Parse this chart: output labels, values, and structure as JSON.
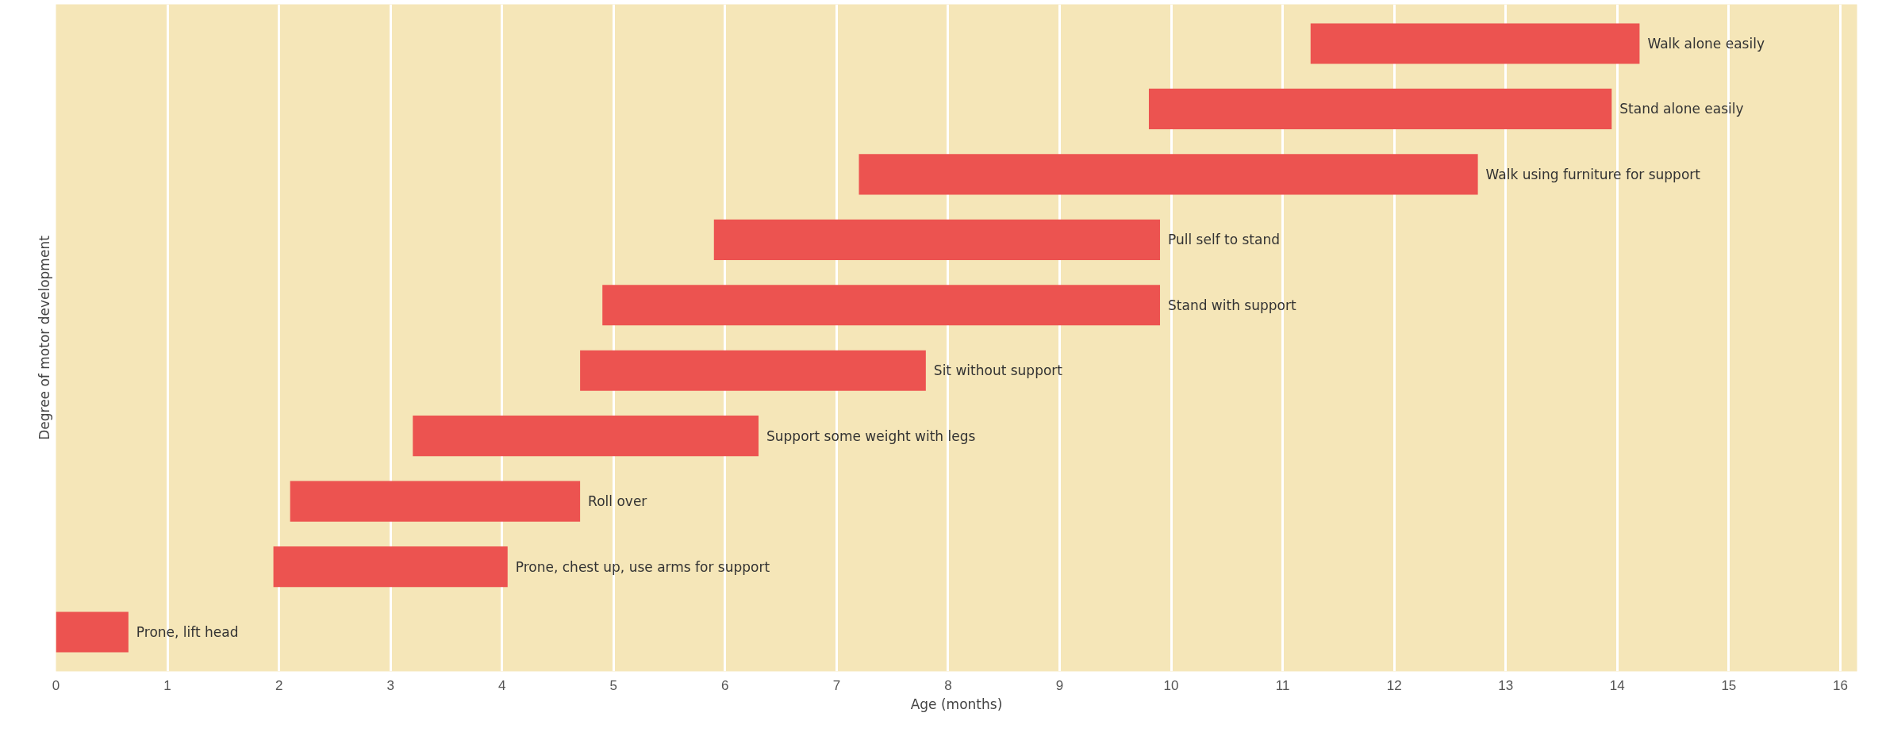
{
  "chart_data": {
    "type": "bar",
    "orientation": "horizontal",
    "xlabel": "Age (months)",
    "ylabel": "Degree of motor development",
    "categories": [
      "Walk alone easily",
      "Stand alone easily",
      "Walk using furniture for support",
      "Pull self to stand",
      "Stand with support",
      "Sit without support",
      "Support some weight with legs",
      "Roll over",
      "Prone, chest up, use arms for support",
      "Prone, lift head"
    ],
    "base": [
      11.25,
      9.8,
      7.2,
      5.9,
      4.9,
      4.7,
      3.2,
      2.1,
      1.95,
      0
    ],
    "values": [
      2.95,
      4.15,
      5.55,
      4.0,
      5.0,
      3.1,
      3.1,
      2.6,
      2.1,
      0.65
    ],
    "color": "#ec5350",
    "xlim": [
      0,
      16.15
    ],
    "xticks": [
      0,
      1,
      2,
      3,
      4,
      5,
      6,
      7,
      8,
      9,
      10,
      11,
      12,
      13,
      14,
      15,
      16
    ],
    "grid": "x",
    "tick_labels": "x"
  }
}
